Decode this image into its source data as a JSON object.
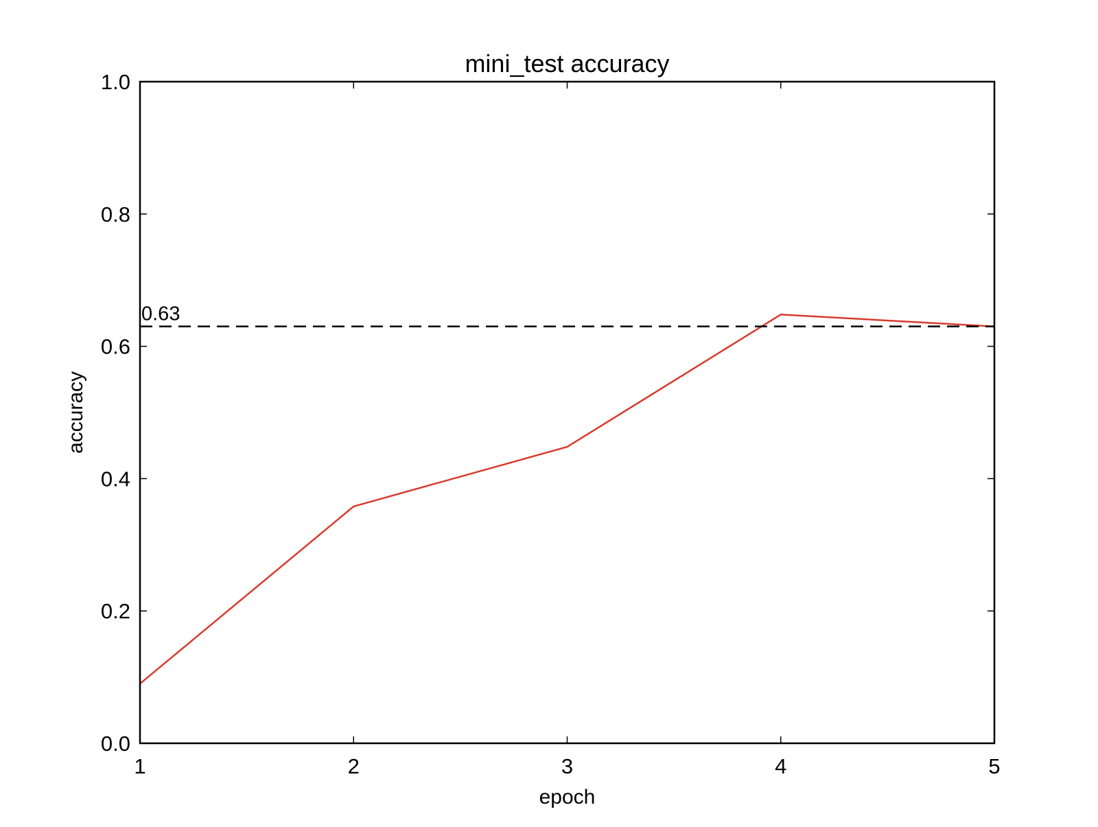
{
  "chart_data": {
    "type": "line",
    "title": "mini_test accuracy",
    "xlabel": "epoch",
    "ylabel": "accuracy",
    "xlim": [
      1,
      5
    ],
    "ylim": [
      0.0,
      1.0
    ],
    "x_ticks": [
      1,
      2,
      3,
      4,
      5
    ],
    "x_tick_labels": [
      "1",
      "2",
      "3",
      "4",
      "5"
    ],
    "y_ticks": [
      0.0,
      0.2,
      0.4,
      0.6,
      0.8,
      1.0
    ],
    "y_tick_labels": [
      "0.0",
      "0.2",
      "0.4",
      "0.6",
      "0.8",
      "1.0"
    ],
    "grid": false,
    "legend": "none",
    "series": [
      {
        "x": [
          1,
          2,
          3,
          4,
          5
        ],
        "values": [
          0.09,
          0.358,
          0.448,
          0.648,
          0.63
        ],
        "color": "#d73b2e",
        "line_style": "solid"
      }
    ],
    "reference_lines": [
      {
        "orientation": "horizontal",
        "value": 0.63,
        "label": "0.63",
        "color": "#000000",
        "line_style": "dashed"
      }
    ]
  }
}
